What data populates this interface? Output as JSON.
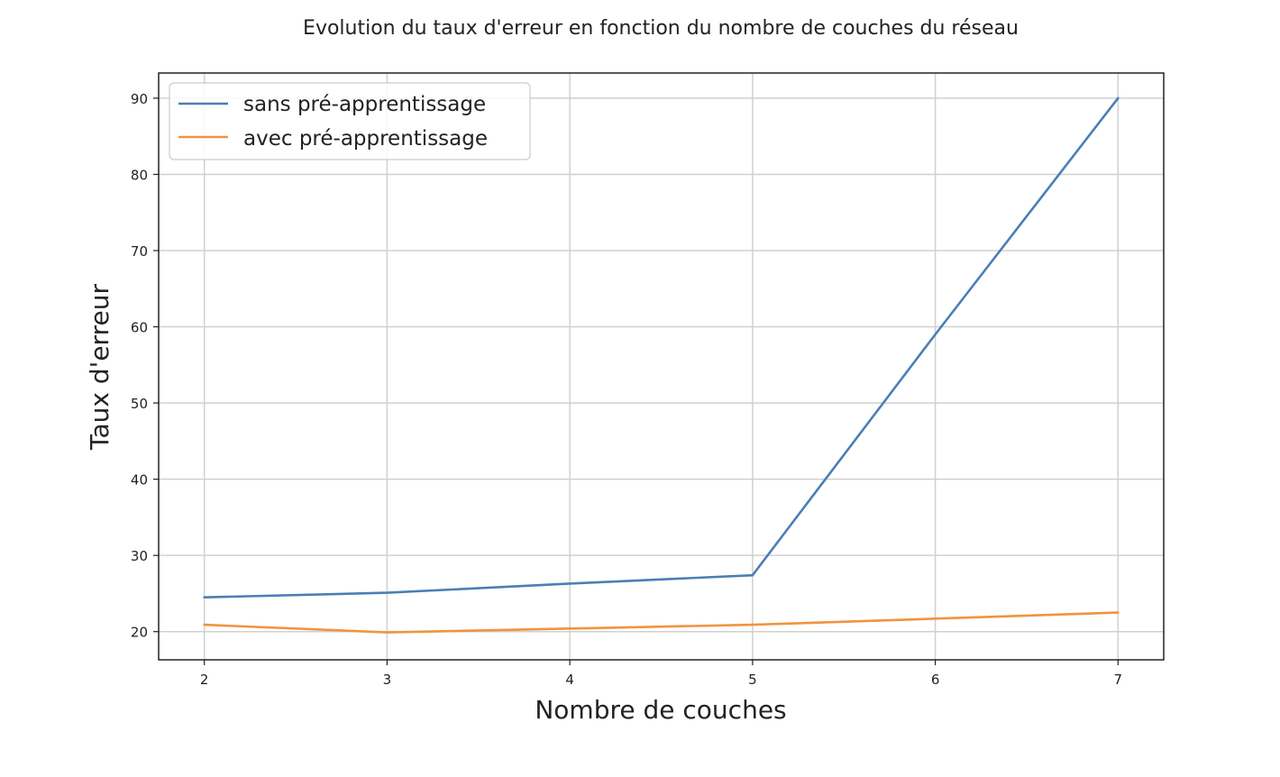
{
  "chart_data": {
    "type": "line",
    "title": "Evolution du taux d'erreur en fonction du nombre de couches du réseau",
    "xlabel": "Nombre de couches",
    "ylabel": "Taux d'erreur",
    "x": [
      2,
      3,
      4,
      5,
      6,
      7
    ],
    "xlim": [
      1.75,
      7.25
    ],
    "ylim": [
      16.3,
      93.3
    ],
    "xticks": [
      "2",
      "3",
      "4",
      "5",
      "6",
      "7"
    ],
    "yticks": [
      "20",
      "30",
      "40",
      "50",
      "60",
      "70",
      "80",
      "90"
    ],
    "grid": true,
    "legend_position": "upper-left",
    "series": [
      {
        "name": "sans pré-apprentissage",
        "color": "#4a7fb5",
        "values": [
          24.5,
          25.1,
          26.3,
          27.4,
          59.0,
          90.0
        ]
      },
      {
        "name": "avec pré-apprentissage",
        "color": "#f0943e",
        "values": [
          20.9,
          19.9,
          20.4,
          20.9,
          21.7,
          22.5
        ]
      }
    ]
  }
}
